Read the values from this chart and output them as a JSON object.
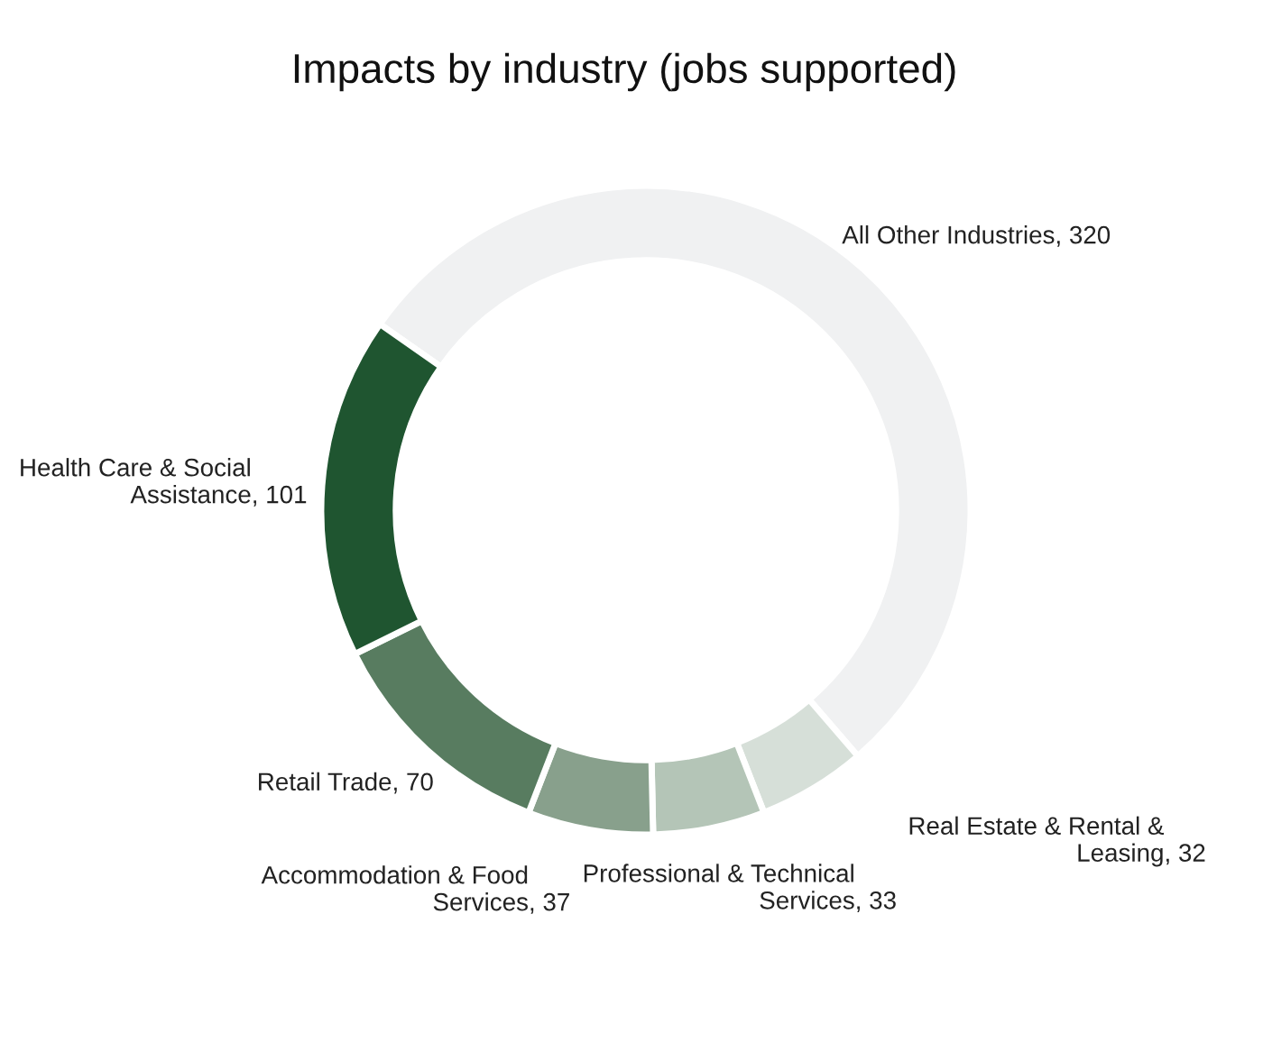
{
  "chart_data": {
    "type": "donut",
    "title": "Impacts by industry (jobs supported)",
    "categories": [
      "All Other Industries",
      "Real Estate & Rental & Leasing",
      "Professional & Technical Services",
      "Accommodation & Food Services",
      "Retail Trade",
      "Health Care & Social Assistance"
    ],
    "values": [
      320,
      32,
      33,
      37,
      70,
      101
    ],
    "value_labels": [
      ", 320",
      ", 32",
      ", 33",
      ", 37",
      ", 70",
      ", 101"
    ],
    "colors": [
      "#f0f1f2",
      "#d6dfd8",
      "#b4c5b7",
      "#88a08c",
      "#587c60",
      "#1f5530"
    ]
  }
}
